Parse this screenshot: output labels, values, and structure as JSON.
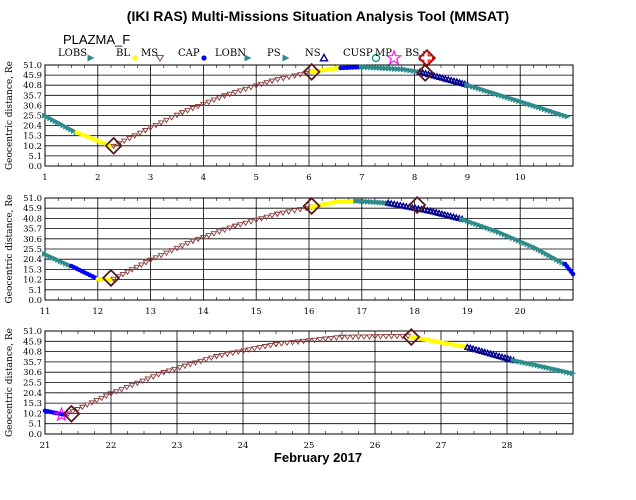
{
  "title": "(IKI RAS) Multi-Missions Situation Analysis Tool (MMSAT)",
  "subtitle": "PLAZMA_F",
  "legend": [
    {
      "label": "LOBS",
      "symbol": "tri-right",
      "color": "#2e8b8b"
    },
    {
      "label": "BL",
      "symbol": "dot",
      "color": "#ffff00"
    },
    {
      "label": "MS",
      "symbol": "tri-down-open",
      "color": "#8b3a3a"
    },
    {
      "label": "CAP",
      "symbol": "dot",
      "color": "#0000ff"
    },
    {
      "label": "LOBN",
      "symbol": "tri-right",
      "color": "#2e8b8b"
    },
    {
      "label": "PS",
      "symbol": "tri-right",
      "color": "#2e8b8b"
    },
    {
      "label": "NS",
      "symbol": "tri-up-open",
      "color": "#00008b"
    },
    {
      "label": "CUSP",
      "symbol": "circle-open",
      "color": "#008b8b"
    },
    {
      "label": "MP",
      "symbol": "star-open",
      "color": "#ff00ff"
    },
    {
      "label": "BS",
      "symbol": "diamond-open",
      "color": "#5a1a1a"
    },
    {
      "label": "",
      "symbol": "cross-open",
      "color": "#ff0000"
    }
  ],
  "xlabel": "February 2017",
  "ylabel": "Geocentric distance, Re",
  "colors": {
    "LOBS": "#2e8b8b",
    "BL": "#ffff00",
    "MS": "#8b3a3a",
    "CAP": "#0000ff",
    "NS": "#00008b",
    "PS": "#2e8b8b",
    "MP": "#ff00ff",
    "BS": "#5a1a1a"
  },
  "chart_data": [
    {
      "type": "scatter",
      "xlim": [
        1,
        11
      ],
      "ylim": [
        0,
        51
      ],
      "x_ticks": [
        "1",
        "2",
        "3",
        "4",
        "5",
        "6",
        "7",
        "8",
        "9",
        "10"
      ],
      "y_ticks": [
        "0.0",
        "5.1",
        "10.2",
        "15.3",
        "20.4",
        "25.5",
        "30.6",
        "35.7",
        "40.8",
        "45.9",
        "51.0"
      ],
      "segments": [
        {
          "region": "PS",
          "points": [
            [
              1.0,
              25.5
            ],
            [
              1.6,
              17.0
            ]
          ]
        },
        {
          "region": "BL",
          "points": [
            [
              1.6,
              17.0
            ],
            [
              2.25,
              10.0
            ]
          ]
        },
        {
          "region": "MS",
          "points": [
            [
              2.3,
              10.0
            ],
            [
              2.9,
              18.0
            ],
            [
              3.6,
              27.0
            ],
            [
              4.4,
              35.5
            ],
            [
              5.3,
              43.0
            ],
            [
              6.05,
              47.5
            ]
          ]
        },
        {
          "region": "BL",
          "points": [
            [
              6.05,
              47.5
            ],
            [
              6.4,
              49.0
            ],
            [
              6.6,
              49.5
            ]
          ]
        },
        {
          "region": "CAP",
          "points": [
            [
              6.6,
              49.5
            ],
            [
              7.0,
              50.0
            ]
          ]
        },
        {
          "region": "PS",
          "points": [
            [
              7.0,
              50.0
            ],
            [
              7.8,
              48.8
            ],
            [
              8.1,
              47.5
            ]
          ]
        },
        {
          "region": "NS",
          "points": [
            [
              8.1,
              47.5
            ],
            [
              8.8,
              42.5
            ],
            [
              9.0,
              41.0
            ]
          ]
        },
        {
          "region": "PS",
          "points": [
            [
              9.0,
              41.0
            ],
            [
              9.6,
              36.0
            ],
            [
              10.2,
              31.0
            ],
            [
              10.9,
              25.0
            ]
          ]
        }
      ],
      "boundaries": [
        {
          "type": "BS",
          "x": 2.3,
          "y": 10.2
        },
        {
          "type": "BS",
          "x": 6.05,
          "y": 47.5
        },
        {
          "type": "BS",
          "x": 8.2,
          "y": 47.0
        }
      ]
    },
    {
      "type": "scatter",
      "xlim": [
        11,
        21
      ],
      "ylim": [
        0,
        51
      ],
      "x_ticks": [
        "11",
        "12",
        "13",
        "14",
        "15",
        "16",
        "17",
        "18",
        "19",
        "20"
      ],
      "y_ticks": [
        "0.0",
        "5.1",
        "10.2",
        "15.3",
        "20.4",
        "25.5",
        "30.6",
        "35.7",
        "40.8",
        "45.9",
        "51.0"
      ],
      "segments": [
        {
          "region": "PS",
          "points": [
            [
              11.0,
              23.0
            ],
            [
              11.5,
              17.0
            ]
          ]
        },
        {
          "region": "CAP",
          "points": [
            [
              11.5,
              17.0
            ],
            [
              12.0,
              10.5
            ]
          ]
        },
        {
          "region": "BL",
          "points": [
            [
              12.0,
              10.5
            ],
            [
              12.25,
              10.0
            ]
          ]
        },
        {
          "region": "MS",
          "points": [
            [
              12.3,
              10.5
            ],
            [
              13.0,
              20.0
            ],
            [
              13.8,
              29.5
            ],
            [
              14.6,
              37.0
            ],
            [
              15.4,
              43.0
            ],
            [
              16.05,
              46.5
            ]
          ]
        },
        {
          "region": "BL",
          "points": [
            [
              16.05,
              46.5
            ],
            [
              16.5,
              49.0
            ],
            [
              16.9,
              49.5
            ]
          ]
        },
        {
          "region": "PS",
          "points": [
            [
              16.9,
              49.5
            ],
            [
              17.5,
              48.5
            ]
          ]
        },
        {
          "region": "NS",
          "points": [
            [
              17.5,
              48.5
            ],
            [
              18.3,
              44.5
            ],
            [
              18.9,
              40.5
            ]
          ]
        },
        {
          "region": "PS",
          "points": [
            [
              18.9,
              40.5
            ],
            [
              19.6,
              34.0
            ],
            [
              20.3,
              26.0
            ],
            [
              20.85,
              18.0
            ]
          ]
        },
        {
          "region": "CAP",
          "points": [
            [
              20.85,
              18.0
            ],
            [
              21.0,
              13.0
            ]
          ]
        }
      ],
      "boundaries": [
        {
          "type": "BS",
          "x": 12.25,
          "y": 11.0
        },
        {
          "type": "BS",
          "x": 16.05,
          "y": 47.0
        },
        {
          "type": "BS",
          "x": 18.05,
          "y": 47.5
        }
      ]
    },
    {
      "type": "scatter",
      "xlim": [
        21,
        29
      ],
      "ylim": [
        0,
        51
      ],
      "x_ticks": [
        "21",
        "22",
        "23",
        "24",
        "25",
        "26",
        "27",
        "28"
      ],
      "y_ticks": [
        "0.0",
        "5.1",
        "10.2",
        "15.3",
        "20.4",
        "25.5",
        "30.6",
        "35.7",
        "40.8",
        "45.9",
        "51.0"
      ],
      "segments": [
        {
          "region": "CAP",
          "points": [
            [
              21.0,
              11.5
            ],
            [
              21.3,
              9.5
            ]
          ]
        },
        {
          "region": "MS",
          "points": [
            [
              21.35,
              10.0
            ],
            [
              22.0,
              20.0
            ],
            [
              22.8,
              30.5
            ],
            [
              23.6,
              38.5
            ],
            [
              24.5,
              44.5
            ],
            [
              25.5,
              48.0
            ],
            [
              26.5,
              48.5
            ]
          ]
        },
        {
          "region": "BL",
          "points": [
            [
              26.55,
              48.0
            ],
            [
              27.4,
              43.0
            ]
          ]
        },
        {
          "region": "NS",
          "points": [
            [
              27.4,
              43.0
            ],
            [
              28.1,
              36.5
            ]
          ]
        },
        {
          "region": "PS",
          "points": [
            [
              28.1,
              36.5
            ],
            [
              28.6,
              33.0
            ],
            [
              29.0,
              30.0
            ]
          ]
        }
      ],
      "boundaries": [
        {
          "type": "MP",
          "x": 21.25,
          "y": 9.5
        },
        {
          "type": "BS",
          "x": 21.4,
          "y": 10.0
        },
        {
          "type": "BS",
          "x": 26.55,
          "y": 48.0
        }
      ]
    }
  ]
}
